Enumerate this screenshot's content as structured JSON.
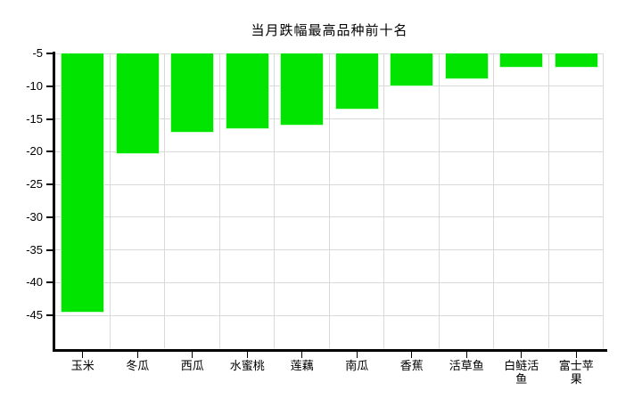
{
  "chart_data": {
    "type": "bar",
    "title": "当月跌幅最高品种前十名",
    "categories": [
      "玉米",
      "冬瓜",
      "西瓜",
      "水蜜桃",
      "莲藕",
      "南瓜",
      "香蕉",
      "活草鱼",
      "白鲢活鱼",
      "富士苹果"
    ],
    "values": [
      -44.5,
      -20.3,
      -17.1,
      -16.6,
      -16.0,
      -13.5,
      -10.0,
      -8.9,
      -7.2,
      -7.2
    ],
    "xlabel": "",
    "ylabel": "",
    "ylim": [
      -50,
      -5
    ],
    "yticks": [
      -5,
      -10,
      -15,
      -20,
      -25,
      -30,
      -35,
      -40,
      -45
    ],
    "grid": true,
    "legend_position": "none",
    "bar_color": "#00e400",
    "bar_border_color": "#c6ffc6",
    "gridline_color": "#d9d9d9",
    "axis_color": "#000000",
    "text_color": "#000000",
    "background_color": "#ffffff"
  }
}
